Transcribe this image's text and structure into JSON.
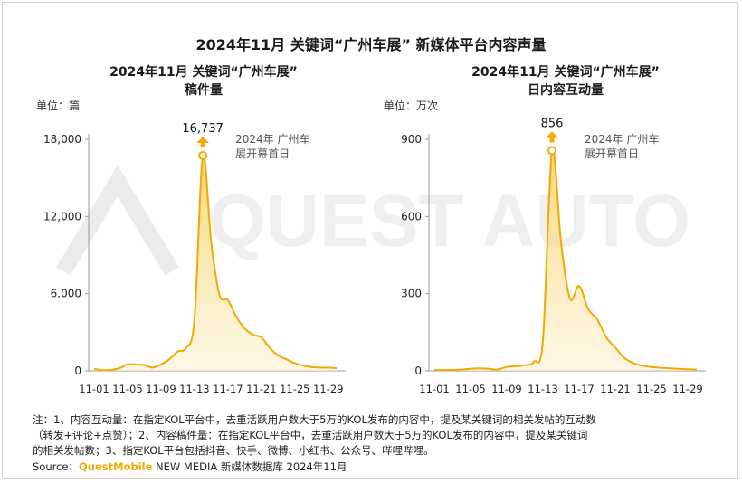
{
  "title": "2024年11月 关键词“广州车展” 新媒体平台内容声量",
  "chart_data": [
    {
      "type": "area",
      "title_line1": "2024年11月  关键词“广州车展”",
      "title_line2": "稿件量",
      "unit_label": "单位：篇",
      "x": [
        "11-01",
        "11-02",
        "11-03",
        "11-04",
        "11-05",
        "11-06",
        "11-07",
        "11-08",
        "11-09",
        "11-10",
        "11-11",
        "11-12",
        "11-13",
        "11-14",
        "11-15",
        "11-16",
        "11-17",
        "11-18",
        "11-19",
        "11-20",
        "11-21",
        "11-22",
        "11-23",
        "11-24",
        "11-25",
        "11-26",
        "11-27",
        "11-28",
        "11-29",
        "11-30"
      ],
      "x_ticks": [
        "11-01",
        "11-05",
        "11-09",
        "11-13",
        "11-17",
        "11-21",
        "11-25",
        "11-29"
      ],
      "values": [
        150,
        50,
        80,
        200,
        500,
        500,
        450,
        250,
        500,
        900,
        1500,
        1800,
        4000,
        16737,
        10000,
        5900,
        5500,
        4200,
        3300,
        2800,
        2600,
        1800,
        1200,
        900,
        600,
        400,
        300,
        250,
        250,
        200
      ],
      "yticks": [
        0,
        6000,
        12000,
        18000
      ],
      "ytick_labels": [
        "0",
        "6,000",
        "12,000",
        "18,000"
      ],
      "ylim": [
        0,
        18000
      ],
      "peak_index": 13,
      "peak_label": "16,737",
      "annotation_line1": "2024年 广州车",
      "annotation_line2": "展开幕首日"
    },
    {
      "type": "area",
      "title_line1": "2024年11月  关键词“广州车展”",
      "title_line2": "日内容互动量",
      "unit_label": "单位：万次",
      "x": [
        "11-01",
        "11-02",
        "11-03",
        "11-04",
        "11-05",
        "11-06",
        "11-07",
        "11-08",
        "11-09",
        "11-10",
        "11-11",
        "11-12",
        "11-13",
        "11-14",
        "11-15",
        "11-16",
        "11-17",
        "11-18",
        "11-19",
        "11-20",
        "11-21",
        "11-22",
        "11-23",
        "11-24",
        "11-25",
        "11-26",
        "11-27",
        "11-28",
        "11-29",
        "11-30"
      ],
      "x_ticks": [
        "11-01",
        "11-05",
        "11-09",
        "11-13",
        "11-17",
        "11-21",
        "11-25",
        "11-29"
      ],
      "values": [
        3,
        3,
        3,
        5,
        8,
        10,
        8,
        5,
        15,
        18,
        22,
        35,
        120,
        856,
        500,
        280,
        330,
        240,
        200,
        130,
        90,
        50,
        30,
        20,
        15,
        12,
        10,
        8,
        6,
        5
      ],
      "yticks": [
        0,
        300,
        600,
        900
      ],
      "ytick_labels": [
        "0",
        "300",
        "600",
        "900"
      ],
      "ylim": [
        0,
        900
      ],
      "peak_index": 13,
      "peak_label": "856",
      "annotation_line1": "2024年 广州车",
      "annotation_line2": "展开幕首日"
    }
  ],
  "notes": {
    "line1": "注：1、内容互动量：在指定KOL平台中，去重活跃用户数大于5万的KOL发布的内容中，提及某关键词的相关发帖的互动数",
    "line2": "（转发+评论+点赞）；2、内容稿件量：在指定KOL平台中，去重活跃用户数大于5万的KOL发布的内容中，提及某关键词",
    "line3": "的相关发帖数；3、指定KOL平台包括抖音、快手、微博、小红书、公众号、哔哩哔哩。"
  },
  "source": {
    "prefix": "Source：",
    "brand": "QuestMobile",
    "suffix": " NEW MEDIA 新媒体数据库 2024年11月"
  },
  "watermark_text": "QUEST AUTO",
  "colors": {
    "line": "#f2a900",
    "fill_top": "#f7d067",
    "fill_bottom": "#fdf3d3",
    "axis": "#999999"
  }
}
